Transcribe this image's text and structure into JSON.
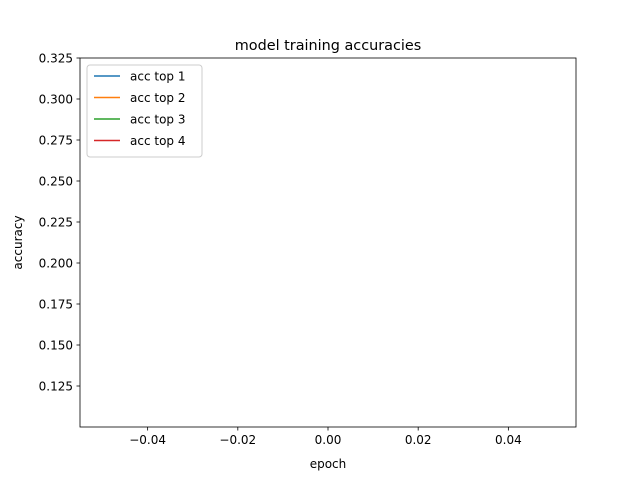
{
  "chart_data": {
    "type": "line",
    "title": "model training accuracies",
    "xlabel": "epoch",
    "ylabel": "accuracy",
    "xlim": [
      -0.055,
      0.055
    ],
    "ylim": [
      0.1,
      0.325
    ],
    "xticks": [
      -0.04,
      -0.02,
      0.0,
      0.02,
      0.04
    ],
    "xtick_labels": [
      "−0.04",
      "−0.02",
      "0.00",
      "0.02",
      "0.04"
    ],
    "yticks": [
      0.125,
      0.15,
      0.175,
      0.2,
      0.225,
      0.25,
      0.275,
      0.3,
      0.325
    ],
    "ytick_labels": [
      "0.125",
      "0.150",
      "0.175",
      "0.200",
      "0.225",
      "0.250",
      "0.275",
      "0.300",
      "0.325"
    ],
    "grid": false,
    "legend_position": "top-left",
    "series": [
      {
        "name": "acc top 1",
        "color": "#1f77b4",
        "x": [],
        "y": []
      },
      {
        "name": "acc top 2",
        "color": "#ff7f0e",
        "x": [],
        "y": []
      },
      {
        "name": "acc top 3",
        "color": "#2ca02c",
        "x": [],
        "y": []
      },
      {
        "name": "acc top 4",
        "color": "#d62728",
        "x": [],
        "y": []
      }
    ]
  }
}
